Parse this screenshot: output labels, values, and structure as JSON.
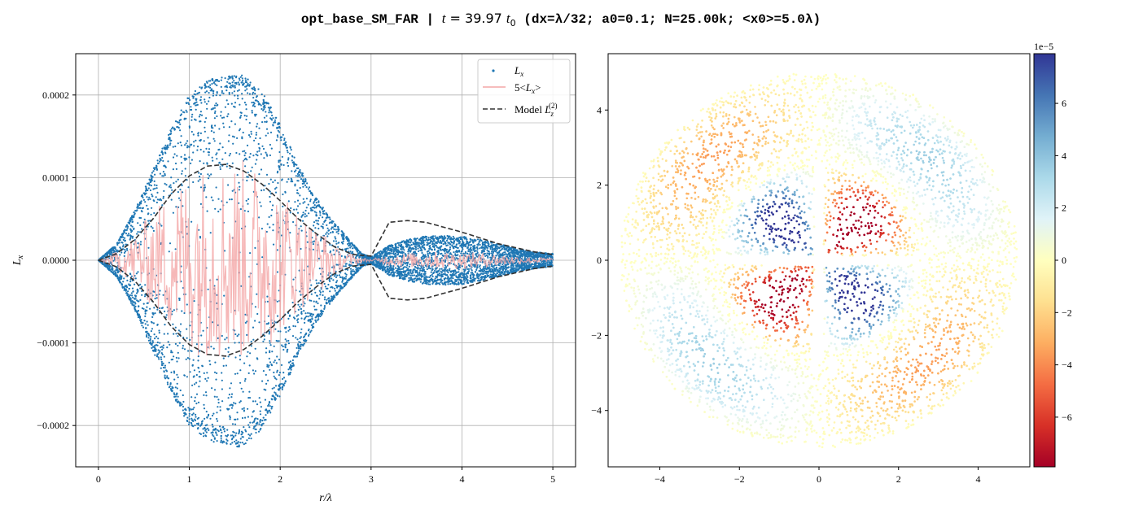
{
  "figure": {
    "title_prefix": "opt_base_SM_FAR | ",
    "title_time_var": "t",
    "title_time_eq": " = 39.97 ",
    "title_time_unit": "t",
    "title_time_sub": "0",
    "title_suffix": " (dx=λ/32; a0=0.1; N=25.00k; <x0>=5.0λ)"
  },
  "chart_data": [
    {
      "type": "scatter",
      "xlabel": "r/λ",
      "ylabel_base": "L",
      "ylabel_sub": "x",
      "xlim": [
        -0.25,
        5.25
      ],
      "ylim": [
        -0.00025,
        0.00025
      ],
      "xticks": [
        0,
        1,
        2,
        3,
        4,
        5
      ],
      "xtick_labels": [
        "0",
        "1",
        "2",
        "3",
        "4",
        "5"
      ],
      "yticks": [
        -0.0002,
        -0.0001,
        0,
        0.0001,
        0.0002
      ],
      "ytick_labels": [
        "−0.0002",
        "−0.0001",
        "0.0000",
        "0.0001",
        "0.0002"
      ],
      "grid": true,
      "legend_position": "top-right",
      "legend": [
        {
          "base": "L",
          "sub": "x",
          "sup": "",
          "prefix": "",
          "suffix": ""
        },
        {
          "base": "L",
          "sub": "x",
          "sup": "",
          "prefix": "5<",
          "suffix": ">"
        },
        {
          "base": "L",
          "sub": "z",
          "sup": "(2)",
          "prefix": "Model ",
          "suffix": ""
        }
      ],
      "colors": {
        "scatter": "#1f77b4",
        "mean_line": "#f4a6a6",
        "model": "#333333"
      },
      "envelope_scatter": {
        "r": [
          0,
          0.2,
          0.4,
          0.6,
          0.8,
          1.0,
          1.2,
          1.4,
          1.5,
          1.6,
          1.8,
          2.0,
          2.2,
          2.4,
          2.6,
          2.8,
          2.9,
          3.0,
          3.2,
          3.4,
          3.6,
          3.8,
          4.0,
          4.2,
          4.4,
          4.6,
          4.8,
          5.0
        ],
        "amplitude": [
          0,
          2e-05,
          6e-05,
          0.00011,
          0.00016,
          0.0002,
          0.000218,
          0.000225,
          0.000227,
          0.000225,
          0.000205,
          0.000165,
          0.000115,
          7.5e-05,
          4.5e-05,
          2e-05,
          8e-06,
          4e-06,
          1.8e-05,
          2.5e-05,
          2.9e-05,
          3e-05,
          2.9e-05,
          2.5e-05,
          2e-05,
          1.4e-05,
          1e-05,
          8e-06
        ]
      },
      "model_curve": {
        "r": [
          0,
          0.2,
          0.4,
          0.6,
          0.8,
          1.0,
          1.2,
          1.4,
          1.6,
          1.8,
          2.0,
          2.2,
          2.4,
          2.6,
          2.8,
          3.0,
          3.2,
          3.4,
          3.6,
          3.8,
          4.0,
          4.2,
          4.4,
          4.6,
          4.8,
          5.0
        ],
        "value": [
          0,
          8e-06,
          2.5e-05,
          5e-05,
          8e-05,
          0.000102,
          0.000114,
          0.000116,
          0.000108,
          9.2e-05,
          7.2e-05,
          5e-05,
          3.2e-05,
          1.6e-05,
          7e-06,
          5e-06,
          4.6e-05,
          4.8e-05,
          4.6e-05,
          4e-05,
          3.4e-05,
          2.7e-05,
          2e-05,
          1.5e-05,
          1e-05,
          7e-06
        ]
      }
    },
    {
      "type": "scatter",
      "xlim": [
        -5.3,
        5.3
      ],
      "ylim": [
        -5.5,
        5.5
      ],
      "xticks": [
        -4,
        -2,
        0,
        2,
        4
      ],
      "xtick_labels": [
        "−4",
        "−2",
        "0",
        "2",
        "4"
      ],
      "yticks": [
        -4,
        -2,
        0,
        2,
        4
      ],
      "ytick_labels": [
        "−4",
        "−2",
        "0",
        "2",
        "4"
      ],
      "grid": false,
      "colormap": "RdYlBu",
      "disk_radius": 5.0,
      "colorbar": {
        "offset_label": "1e−5",
        "range": [
          -7.9,
          7.9
        ],
        "ticks": [
          -6,
          -4,
          -2,
          0,
          2,
          4,
          6
        ],
        "tick_labels": [
          "−6",
          "−4",
          "−2",
          "0",
          "2",
          "4",
          "6"
        ],
        "stops": [
          "#a50026",
          "#d73027",
          "#f46d43",
          "#fdae61",
          "#fee090",
          "#ffffbf",
          "#e0f3f8",
          "#abd9e9",
          "#74add1",
          "#4575b4",
          "#313695"
        ]
      }
    }
  ]
}
